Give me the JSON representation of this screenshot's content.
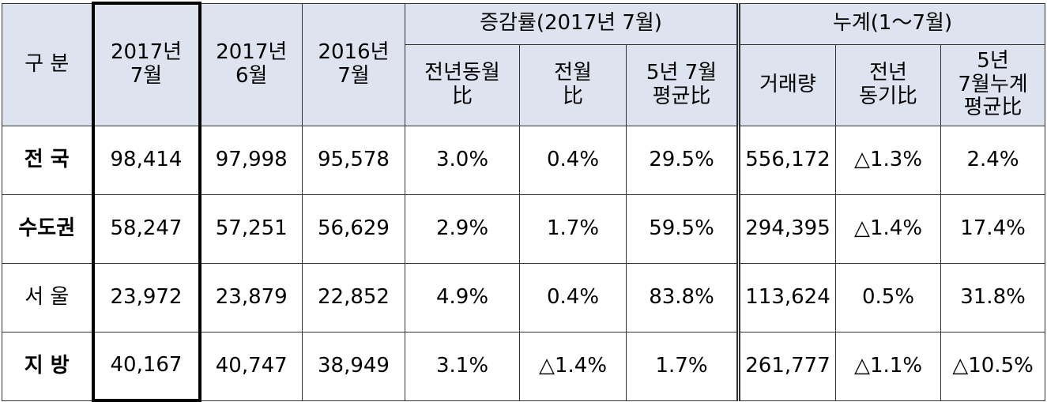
{
  "header": {
    "category": "구 분",
    "columns": [
      "2017년\n7월",
      "2017년\n6월",
      "2016년\n7월"
    ],
    "growth": {
      "title": "증감률(2017년 7월)",
      "columns": [
        "전년동월\n比",
        "전월\n比",
        "5년 7월\n평균比"
      ]
    },
    "cumulative": {
      "title": "누계(1～7월)",
      "columns": [
        "거래량",
        "전년\n동기比",
        "5년\n7월누계\n평균比"
      ]
    }
  },
  "rows": [
    {
      "label": "전 국",
      "values": [
        "98,414",
        "97,998",
        "95,578",
        "3.0%",
        "0.4%",
        "29.5%",
        "556,172",
        "△1.3%",
        "2.4%"
      ]
    },
    {
      "label": "수도권",
      "values": [
        "58,247",
        "57,251",
        "56,629",
        "2.9%",
        "1.7%",
        "59.5%",
        "294,395",
        "△1.4%",
        "17.4%"
      ]
    },
    {
      "label": "서 울",
      "values": [
        "23,972",
        "23,879",
        "22,852",
        "4.9%",
        "0.4%",
        "83.8%",
        "113,624",
        "0.5%",
        "31.8%"
      ]
    },
    {
      "label": "지 방",
      "values": [
        "40,167",
        "40,747",
        "38,949",
        "3.1%",
        "△1.4%",
        "1.7%",
        "261,777",
        "△1.1%",
        "△10.5%"
      ]
    }
  ]
}
